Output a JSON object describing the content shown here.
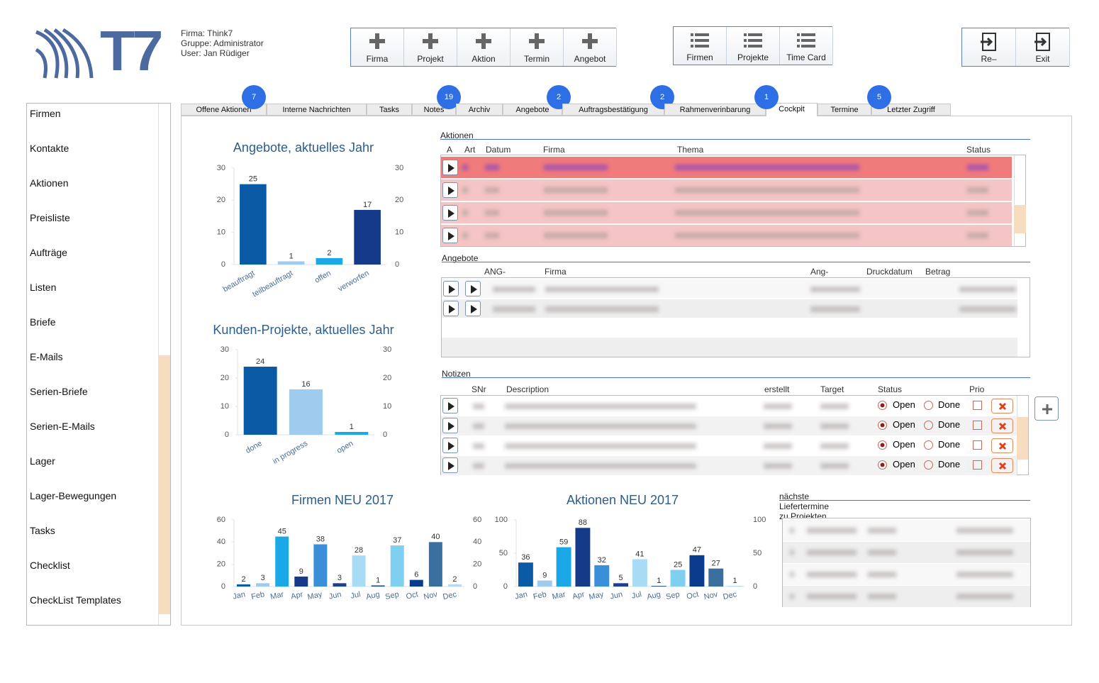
{
  "header": {
    "logo": "T7",
    "firma": "Firma: Think7",
    "gruppe": "Gruppe: Administrator",
    "user": "User: Jan Rüdiger"
  },
  "toolbar_new": [
    "Firma",
    "Projekt",
    "Aktion",
    "Termin",
    "Angebot"
  ],
  "toolbar_lists": [
    "Firmen",
    "Projekte",
    "Time Card"
  ],
  "toolbar_session": [
    "Re–",
    "Exit"
  ],
  "sidebar": [
    "Firmen",
    "Kontakte",
    "Aktionen",
    "Preisliste",
    "Aufträge",
    "Listen",
    "Briefe",
    "E-Mails",
    "Serien-Briefe",
    "Serien-E-Mails",
    "Lager",
    "Lager-Bewegungen",
    "Tasks",
    "Checklist",
    "CheckList Templates"
  ],
  "tabs": [
    {
      "label": "Offene Aktionen",
      "badge": 7
    },
    {
      "label": "Interne Nachrichten"
    },
    {
      "label": "Tasks"
    },
    {
      "label": "Notes",
      "badge": 19
    },
    {
      "label": "Archiv"
    },
    {
      "label": "Angebote",
      "badge": 2
    },
    {
      "label": "Auftragsbestätigung",
      "badge": 2
    },
    {
      "label": "Rahmenverinbarung"
    },
    {
      "label": "Cockpit",
      "badge": 1,
      "active": true
    },
    {
      "label": "Termine"
    },
    {
      "label": "Letzter Zugriff",
      "badge": 5
    }
  ],
  "charts": [
    {
      "type": "bar",
      "title": "Angebote, aktuelles Jahr",
      "categories": [
        "beauftragt",
        "teilbeauftragt",
        "offen",
        "verworfen"
      ],
      "values": [
        25,
        1,
        2,
        17
      ],
      "colors": [
        "#0b5aa6",
        "#9ecbee",
        "#1aa8e6",
        "#163a8a"
      ],
      "ylim": [
        0,
        30
      ],
      "yticks": [
        0,
        10,
        20,
        30
      ]
    },
    {
      "type": "bar",
      "title": "Kunden-Projekte, aktuelles Jahr",
      "categories": [
        "done",
        "in progress",
        "open"
      ],
      "values": [
        24,
        16,
        1
      ],
      "colors": [
        "#0b5aa6",
        "#9ecbee",
        "#1aa8e6"
      ],
      "ylim": [
        0,
        30
      ],
      "yticks": [
        0,
        10,
        20,
        30
      ]
    },
    {
      "type": "bar",
      "title": "Firmen NEU 2017",
      "categories": [
        "Jan",
        "Feb",
        "Mar",
        "Apr",
        "May",
        "Jun",
        "Jul",
        "Aug",
        "Sep",
        "Oct",
        "Nov",
        "Dec"
      ],
      "values": [
        2,
        3,
        45,
        9,
        38,
        3,
        28,
        1,
        37,
        6,
        40,
        2
      ],
      "colors": [
        "#0b5aa6",
        "#9ecbee",
        "#1aa8e6",
        "#163a8a",
        "#3b8fd9",
        "#1c3f94",
        "#a8dcf5",
        "#1c4b9e",
        "#7ecff0",
        "#0b3b8c",
        "#3a6fa0",
        "#b9d8ef"
      ],
      "ylim": [
        0,
        60
      ],
      "yticks": [
        0,
        20,
        40,
        60
      ]
    },
    {
      "type": "bar",
      "title": "Aktionen NEU 2017",
      "categories": [
        "Jan",
        "Feb",
        "Mar",
        "Apr",
        "May",
        "Jun",
        "Jul",
        "Aug",
        "Sep",
        "Oct",
        "Nov",
        "Dec"
      ],
      "values": [
        36,
        9,
        59,
        88,
        32,
        5,
        41,
        1,
        25,
        47,
        27,
        1
      ],
      "colors": [
        "#0b5aa6",
        "#9ecbee",
        "#1aa8e6",
        "#163a8a",
        "#3b8fd9",
        "#1c3f94",
        "#a8dcf5",
        "#1c4b9e",
        "#7ecff0",
        "#0b3b8c",
        "#3a6fa0",
        "#b9d8ef"
      ],
      "ylim": [
        0,
        100
      ],
      "yticks": [
        0,
        50,
        100
      ]
    }
  ],
  "aktionen": {
    "title": "Aktionen",
    "columns": [
      "A",
      "Art",
      "Datum",
      "Firma",
      "Thema",
      "Status"
    ]
  },
  "angebote": {
    "title": "Angebote",
    "columns": [
      "ANG-Nr",
      "Firma",
      "Ang-Datum",
      "Druckdatum",
      "Betrag Brutto"
    ]
  },
  "notizen": {
    "title": "Notizen",
    "columns": [
      "SNr",
      "Description",
      "erstellt",
      "Target Date",
      "Status",
      "Prio"
    ],
    "rows": [
      {
        "open": "Open",
        "done": "Done"
      },
      {
        "open": "Open",
        "done": "Done"
      },
      {
        "open": "Open",
        "done": "Done"
      },
      {
        "open": "Open",
        "done": "Done"
      }
    ]
  },
  "liefertermine": {
    "title": "nächste Liefertermine zu Projekten"
  }
}
